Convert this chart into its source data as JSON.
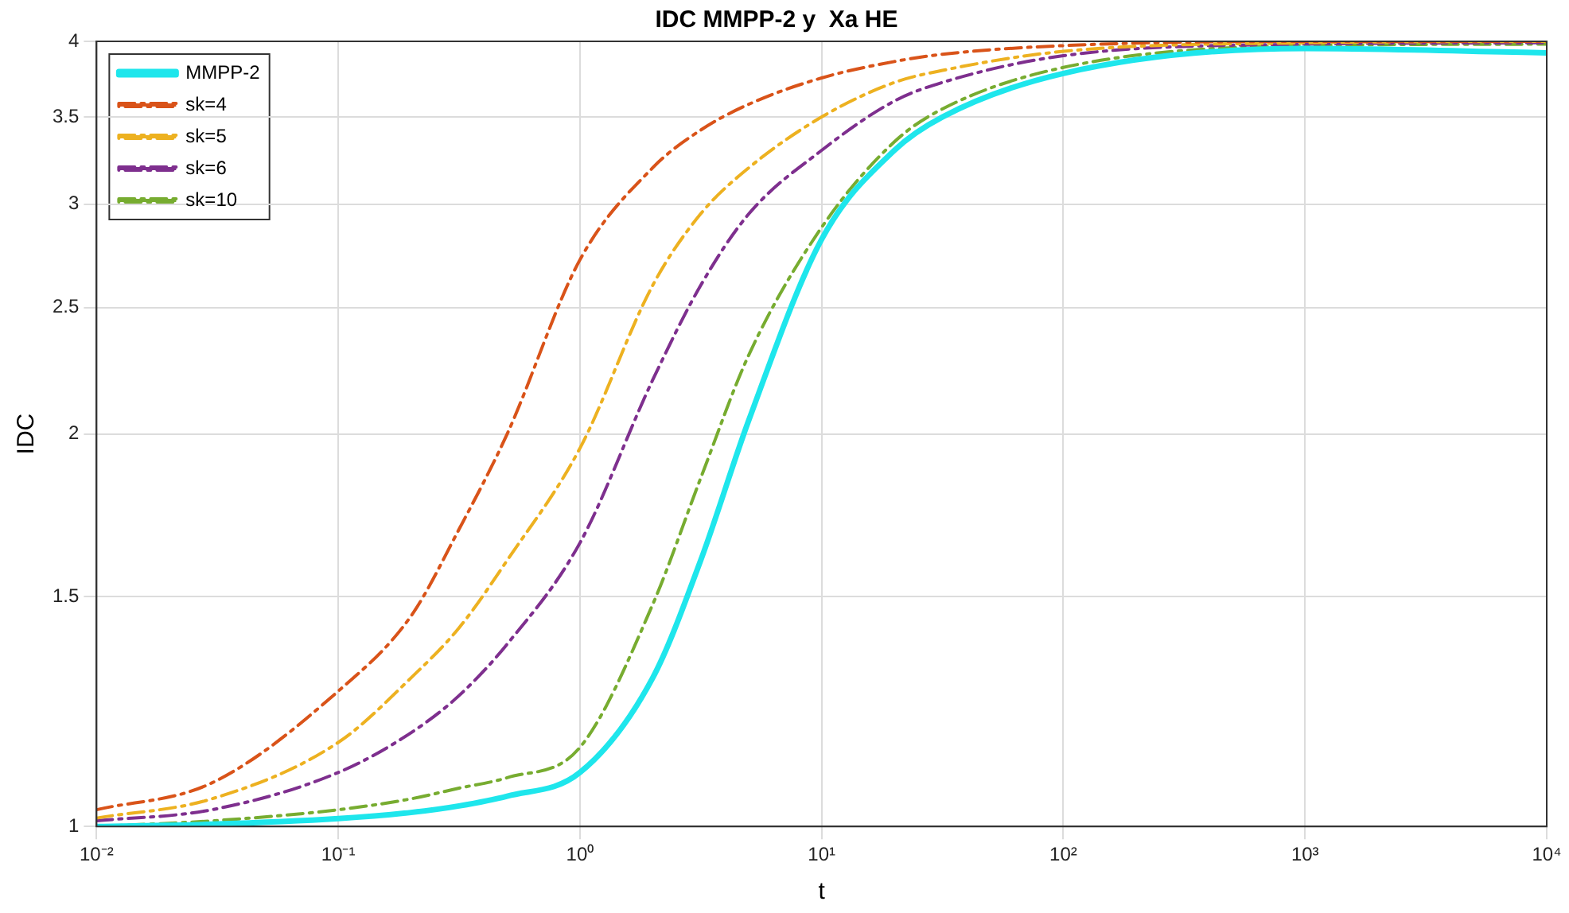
{
  "chart_data": {
    "type": "line",
    "title": "IDC MMPP-2 y  Xa HE",
    "xlabel": "t",
    "ylabel": "IDC",
    "log": "xy",
    "grid": true,
    "legend": "top left",
    "marker": "none",
    "x": [
      0.01,
      0.03,
      0.1,
      0.2,
      0.316,
      0.5,
      1,
      2,
      3.16,
      5,
      10,
      20,
      31.6,
      100,
      1000,
      10000
    ],
    "xlim": [
      0.01,
      10000
    ],
    "xticks": [
      {
        "value": 0.01,
        "label": "10⁻²"
      },
      {
        "value": 0.1,
        "label": "10⁻¹"
      },
      {
        "value": 1,
        "label": "10⁰"
      },
      {
        "value": 10,
        "label": "10¹"
      },
      {
        "value": 100,
        "label": "10²"
      },
      {
        "value": 1000,
        "label": "10³"
      },
      {
        "value": 10000,
        "label": "10⁴"
      }
    ],
    "ylim": [
      1,
      4
    ],
    "yticks": [
      1,
      1.5,
      2,
      2.5,
      3,
      3.5,
      4
    ],
    "series": [
      {
        "name": "MMPP-2",
        "color": "#1ee6ec",
        "line_style": "solid",
        "values": [
          1.0,
          1.004,
          1.014,
          1.025,
          1.037,
          1.055,
          1.1,
          1.3,
          1.6,
          2.05,
          2.82,
          3.3,
          3.5,
          3.78,
          3.95,
          3.92
        ]
      },
      {
        "name": "sk=4",
        "color": "#d95319",
        "line_style": "dashed",
        "values": [
          1.03,
          1.08,
          1.27,
          1.45,
          1.69,
          2.0,
          2.72,
          3.2,
          3.42,
          3.58,
          3.75,
          3.86,
          3.91,
          3.97,
          4.0,
          4.0
        ]
      },
      {
        "name": "sk=5",
        "color": "#edb120",
        "line_style": "dashed",
        "values": [
          1.015,
          1.05,
          1.16,
          1.3,
          1.42,
          1.6,
          1.95,
          2.6,
          2.95,
          3.2,
          3.5,
          3.72,
          3.8,
          3.93,
          3.99,
          4.0
        ]
      },
      {
        "name": "sk=6",
        "color": "#7e2f8e",
        "line_style": "dashed",
        "values": [
          1.01,
          1.03,
          1.1,
          1.18,
          1.26,
          1.38,
          1.65,
          2.2,
          2.6,
          2.95,
          3.3,
          3.6,
          3.72,
          3.9,
          3.98,
          3.99
        ]
      },
      {
        "name": "sk=10",
        "color": "#77ac30",
        "line_style": "dashed",
        "values": [
          1.0,
          1.01,
          1.03,
          1.05,
          1.07,
          1.09,
          1.15,
          1.48,
          1.85,
          2.3,
          2.88,
          3.35,
          3.55,
          3.82,
          3.97,
          3.98
        ]
      }
    ]
  }
}
